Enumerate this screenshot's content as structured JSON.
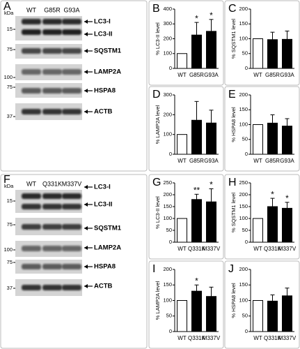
{
  "blots": [
    {
      "panel": "A",
      "unit": "kDa",
      "lanes": [
        "WT",
        "G85R",
        "G93A"
      ],
      "markers": [
        15,
        75,
        100,
        75,
        37
      ],
      "proteins": [
        "LC3-I",
        "LC3-II",
        "SQSTM1",
        "LAMP2A",
        "HSPA8",
        "ACTB"
      ]
    },
    {
      "panel": "F",
      "unit": "kDa",
      "lanes": [
        "WT",
        "Q331K",
        "M337V"
      ],
      "markers": [
        15,
        75,
        100,
        75,
        37
      ],
      "proteins": [
        "LC3-I",
        "LC3-II",
        "SQSTM1",
        "LAMP2A",
        "HSPA8",
        "ACTB"
      ]
    }
  ],
  "chart_data": [
    {
      "type": "bar",
      "panel": "B",
      "ylabel": "% LC3-II level",
      "categories": [
        "WT",
        "G85R",
        "G93A"
      ],
      "values": [
        100,
        225,
        250
      ],
      "errors": [
        null,
        85,
        80
      ],
      "annotations": [
        null,
        "*",
        "*"
      ],
      "colors": [
        "#ffffff",
        "#000000",
        "#000000"
      ],
      "ylim": [
        0,
        400
      ],
      "yticks": [
        0,
        100,
        200,
        300,
        400
      ]
    },
    {
      "type": "bar",
      "panel": "C",
      "ylabel": "% SQSTM1 level",
      "categories": [
        "WT",
        "G85R",
        "G93A"
      ],
      "values": [
        100,
        97,
        98
      ],
      "errors": [
        null,
        25,
        28
      ],
      "annotations": [
        null,
        null,
        null
      ],
      "colors": [
        "#ffffff",
        "#000000",
        "#000000"
      ],
      "ylim": [
        0,
        200
      ],
      "yticks": [
        0,
        50,
        100,
        150,
        200
      ]
    },
    {
      "type": "bar",
      "panel": "D",
      "ylabel": "% LAMP2A level",
      "categories": [
        "WT",
        "G85R",
        "G93A"
      ],
      "values": [
        100,
        172,
        158
      ],
      "errors": [
        null,
        95,
        65
      ],
      "annotations": [
        null,
        null,
        null
      ],
      "colors": [
        "#ffffff",
        "#000000",
        "#000000"
      ],
      "ylim": [
        0,
        300
      ],
      "yticks": [
        0,
        100,
        200,
        300
      ]
    },
    {
      "type": "bar",
      "panel": "E",
      "ylabel": "% HSPA8 level",
      "categories": [
        "WT",
        "G85R",
        "G93A"
      ],
      "values": [
        100,
        105,
        95
      ],
      "errors": [
        null,
        28,
        25
      ],
      "annotations": [
        null,
        null,
        null
      ],
      "colors": [
        "#ffffff",
        "#000000",
        "#000000"
      ],
      "ylim": [
        0,
        200
      ],
      "yticks": [
        0,
        50,
        100,
        150,
        200
      ]
    },
    {
      "type": "bar",
      "panel": "G",
      "ylabel": "% LC3-II level",
      "categories": [
        "WT",
        "Q331K",
        "M337V"
      ],
      "values": [
        100,
        180,
        170
      ],
      "errors": [
        null,
        22,
        55
      ],
      "annotations": [
        null,
        "**",
        "*"
      ],
      "colors": [
        "#ffffff",
        "#000000",
        "#000000"
      ],
      "ylim": [
        0,
        250
      ],
      "yticks": [
        0,
        50,
        100,
        150,
        200,
        250
      ]
    },
    {
      "type": "bar",
      "panel": "H",
      "ylabel": "% SQSTM1 level",
      "categories": [
        "WT",
        "Q331K",
        "M337V"
      ],
      "values": [
        100,
        150,
        143
      ],
      "errors": [
        null,
        35,
        25
      ],
      "annotations": [
        null,
        "*",
        "*"
      ],
      "colors": [
        "#ffffff",
        "#000000",
        "#000000"
      ],
      "ylim": [
        0,
        250
      ],
      "yticks": [
        0,
        50,
        100,
        150,
        200,
        250
      ]
    },
    {
      "type": "bar",
      "panel": "I",
      "ylabel": "% LAMP2A level",
      "categories": [
        "WT",
        "Q331K",
        "M337V"
      ],
      "values": [
        100,
        130,
        113
      ],
      "errors": [
        null,
        20,
        30
      ],
      "annotations": [
        null,
        "*",
        null
      ],
      "colors": [
        "#ffffff",
        "#000000",
        "#000000"
      ],
      "ylim": [
        0,
        200
      ],
      "yticks": [
        0,
        50,
        100,
        150,
        200
      ]
    },
    {
      "type": "bar",
      "panel": "J",
      "ylabel": "% HSPA8 level",
      "categories": [
        "WT",
        "Q331K",
        "M337V"
      ],
      "values": [
        100,
        98,
        115
      ],
      "errors": [
        null,
        20,
        25
      ],
      "annotations": [
        null,
        null,
        null
      ],
      "colors": [
        "#ffffff",
        "#000000",
        "#000000"
      ],
      "ylim": [
        0,
        200
      ],
      "yticks": [
        0,
        50,
        100,
        150,
        200
      ]
    }
  ]
}
